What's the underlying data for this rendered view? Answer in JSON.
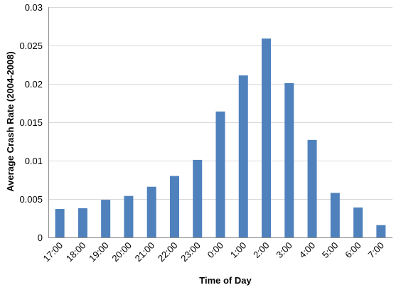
{
  "chart_data": {
    "type": "bar",
    "title": "",
    "xlabel": "Time of Day",
    "ylabel": "Average Crash Rate (2004-2008)",
    "categories": [
      "17:00",
      "18:00",
      "19:00",
      "20:00",
      "21:00",
      "22:00",
      "23:00",
      "0:00",
      "1:00",
      "2:00",
      "3:00",
      "4:00",
      "5:00",
      "6:00",
      "7:00"
    ],
    "values": [
      0.0037,
      0.0038,
      0.0049,
      0.0054,
      0.0066,
      0.008,
      0.0101,
      0.0164,
      0.0211,
      0.0259,
      0.0201,
      0.0127,
      0.0058,
      0.0039,
      0.0016
    ],
    "ylim": [
      0,
      0.03
    ],
    "yticks": [
      0,
      0.005,
      0.01,
      0.015,
      0.02,
      0.025,
      0.03
    ],
    "ytick_labels": [
      "0",
      "0.005",
      "0.01",
      "0.015",
      "0.02",
      "0.025",
      "0.03"
    ],
    "grid": true,
    "legend": "none",
    "bar_color": "#4f81bd"
  }
}
